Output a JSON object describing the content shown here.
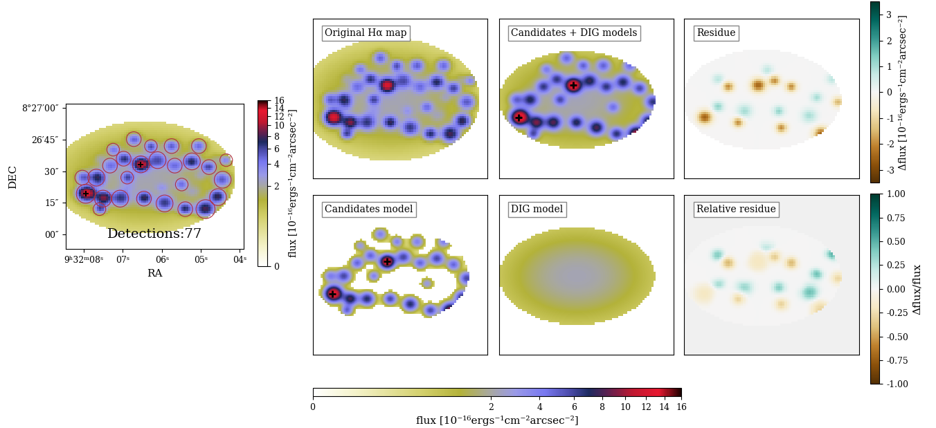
{
  "chart_data": {
    "type": "image",
    "overview": {
      "xlabel": "RA",
      "ylabel": "DEC",
      "xlim": [
        8.47,
        3.91
      ],
      "ylim": [
        -7,
        62
      ],
      "xticks": [
        {
          "value": 8,
          "label": "9ʰ32ᵐ08ˢ"
        },
        {
          "value": 7,
          "label": "07ˢ"
        },
        {
          "value": 6,
          "label": "06ˢ"
        },
        {
          "value": 5,
          "label": "05ˢ"
        },
        {
          "value": 4,
          "label": "04ˢ"
        }
      ],
      "yticks": [
        {
          "value": 60,
          "label": "8°27′00″"
        },
        {
          "value": 45,
          "label": "26′45″"
        },
        {
          "value": 30,
          "label": "30″"
        },
        {
          "value": 15,
          "label": "15″"
        },
        {
          "value": 0,
          "label": "00″"
        }
      ],
      "annotation": "Detections:77"
    },
    "panel_titles": [
      "Original Hα map",
      "Candidates + DIG models",
      "Residue",
      "Candidates model",
      "DIG model",
      "Relative residue"
    ],
    "tick_labels": false,
    "flux_colorbar": {
      "label": "flux [10⁻¹⁶ergs⁻¹cm⁻²arcsec⁻²]",
      "range": [
        0,
        16
      ],
      "ticks": [
        0,
        2,
        4,
        6,
        8,
        10,
        12,
        14,
        16
      ]
    },
    "residue_colorbar": {
      "label": "Δflux [10⁻¹⁶ergs⁻¹cm⁻²arcsec⁻²]",
      "range": [
        -3.5,
        3.5
      ],
      "ticks": [
        -3,
        -2,
        -1,
        0,
        1,
        2,
        3
      ]
    },
    "relative_colorbar": {
      "label": "Δflux/flux",
      "range": [
        -1,
        1
      ],
      "ticks": [
        {
          "value": -1,
          "label": "-1.00"
        },
        {
          "value": -0.75,
          "label": "-0.75"
        },
        {
          "value": -0.5,
          "label": "-0.50"
        },
        {
          "value": -0.25,
          "label": "-0.25"
        },
        {
          "value": 0,
          "label": "0.00"
        },
        {
          "value": 0.25,
          "label": "0.25"
        },
        {
          "value": 0.5,
          "label": "0.50"
        },
        {
          "value": 0.75,
          "label": "0.75"
        },
        {
          "value": 1,
          "label": "1.00"
        }
      ]
    },
    "dig": {
      "ra": 6.45,
      "dec": 27,
      "peak": 2.2,
      "sigma": [
        20,
        14
      ],
      "model_extent": [
        31,
        22
      ],
      "map_extent": [
        35,
        27
      ]
    },
    "candidates": [
      {
        "ra": 7.95,
        "dec": 19.3,
        "peak": 14,
        "r": 4.5,
        "marker": "+"
      },
      {
        "ra": 6.54,
        "dec": 33.3,
        "peak": 13,
        "r": 4.0,
        "marker": "+"
      },
      {
        "ra": 7.68,
        "dec": 27.0,
        "peak": 6,
        "r": 4.0
      },
      {
        "ra": 7.33,
        "dec": 32.7,
        "peak": 5,
        "r": 3.5
      },
      {
        "ra": 6.98,
        "dec": 36.0,
        "peak": 5,
        "r": 3.5
      },
      {
        "ra": 6.11,
        "dec": 35.3,
        "peak": 6,
        "r": 4.0
      },
      {
        "ra": 5.67,
        "dec": 32.7,
        "peak": 5,
        "r": 3.5
      },
      {
        "ra": 5.23,
        "dec": 34.7,
        "peak": 6,
        "r": 4.0
      },
      {
        "ra": 4.79,
        "dec": 32.0,
        "peak": 5,
        "r": 3.5
      },
      {
        "ra": 4.44,
        "dec": 26.0,
        "peak": 6,
        "r": 4.0
      },
      {
        "ra": 4.56,
        "dec": 17.7,
        "peak": 7,
        "r": 4.0
      },
      {
        "ra": 4.88,
        "dec": 12.0,
        "peak": 10,
        "r": 4.5
      },
      {
        "ra": 5.4,
        "dec": 12.0,
        "peak": 6,
        "r": 3.5
      },
      {
        "ra": 5.93,
        "dec": 14.7,
        "peak": 7,
        "r": 4.0
      },
      {
        "ra": 6.46,
        "dec": 17.0,
        "peak": 6,
        "r": 3.5
      },
      {
        "ra": 7.07,
        "dec": 17.0,
        "peak": 7,
        "r": 4.0
      },
      {
        "ra": 7.51,
        "dec": 17.0,
        "peak": 8,
        "r": 4.0
      },
      {
        "ra": 7.6,
        "dec": 12.0,
        "peak": 5,
        "r": 3.0
      },
      {
        "ra": 8.04,
        "dec": 27.0,
        "peak": 4,
        "r": 3.5
      },
      {
        "ra": 6.89,
        "dec": 27.0,
        "peak": 4,
        "r": 3.0
      },
      {
        "ra": 5.49,
        "dec": 23.7,
        "peak": 3,
        "r": 3.0
      },
      {
        "ra": 5.75,
        "dec": 42.0,
        "peak": 4,
        "r": 3.5
      },
      {
        "ra": 5.05,
        "dec": 42.0,
        "peak": 4,
        "r": 3.5
      },
      {
        "ra": 6.28,
        "dec": 42.0,
        "peak": 4,
        "r": 3.0
      },
      {
        "ra": 6.72,
        "dec": 45.3,
        "peak": 4,
        "r": 3.5
      },
      {
        "ra": 4.35,
        "dec": 35.3,
        "peak": 3,
        "r": 3.0
      },
      {
        "ra": 7.25,
        "dec": 40.3,
        "peak": 3,
        "r": 3.0
      }
    ],
    "residuals": [
      {
        "ra": 7.95,
        "dec": 19.3,
        "amp": -2.5,
        "r": 4
      },
      {
        "ra": 6.54,
        "dec": 33.3,
        "amp": -2.5,
        "r": 4
      },
      {
        "ra": 7.33,
        "dec": 32.7,
        "amp": -2.0,
        "r": 3
      },
      {
        "ra": 5.67,
        "dec": 32.7,
        "amp": -2.0,
        "r": 3
      },
      {
        "ra": 4.88,
        "dec": 12.0,
        "amp": -2.5,
        "r": 4
      },
      {
        "ra": 5.93,
        "dec": 14.7,
        "amp": -2.0,
        "r": 3
      },
      {
        "ra": 7.07,
        "dec": 17.0,
        "amp": -2.0,
        "r": 3
      },
      {
        "ra": 4.44,
        "dec": 26.0,
        "amp": -1.5,
        "r": 3
      },
      {
        "ra": 6.11,
        "dec": 35.3,
        "amp": -2.0,
        "r": 3
      },
      {
        "ra": 7.6,
        "dec": 24.0,
        "amp": 1.2,
        "r": 3
      },
      {
        "ra": 6.9,
        "dec": 22.0,
        "amp": 1.0,
        "r": 4
      },
      {
        "ra": 6.0,
        "dec": 22.0,
        "amp": 1.2,
        "r": 3
      },
      {
        "ra": 5.2,
        "dec": 20.0,
        "amp": 1.0,
        "r": 4
      },
      {
        "ra": 5.0,
        "dec": 28.0,
        "amp": 1.0,
        "r": 3
      },
      {
        "ra": 6.3,
        "dec": 40.0,
        "amp": 0.8,
        "r": 3
      },
      {
        "ra": 7.6,
        "dec": 36.0,
        "amp": 0.8,
        "r": 3
      },
      {
        "ra": 4.6,
        "dec": 36.0,
        "amp": 0.8,
        "r": 3
      }
    ]
  }
}
